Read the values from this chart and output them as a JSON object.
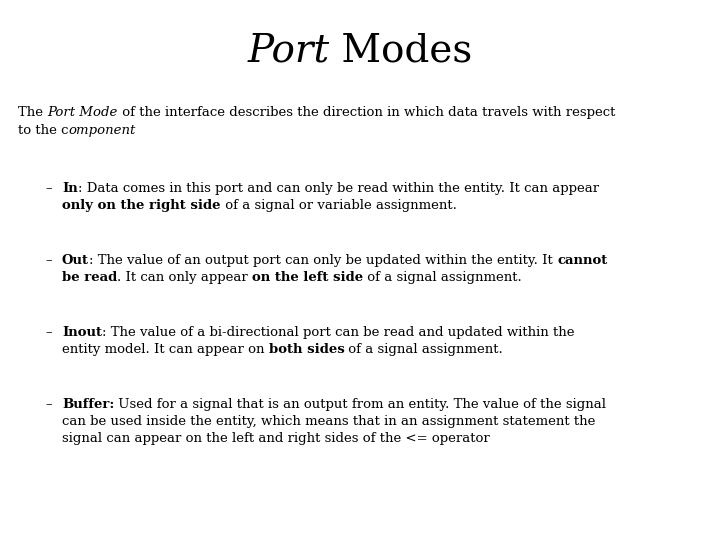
{
  "background_color": "#ffffff",
  "text_color": "#000000",
  "title_italic": "Port",
  "title_normal": " Modes",
  "title_fontsize": 28,
  "body_fontsize": 9.5,
  "fig_w": 7.2,
  "fig_h": 5.4,
  "dpi": 100
}
